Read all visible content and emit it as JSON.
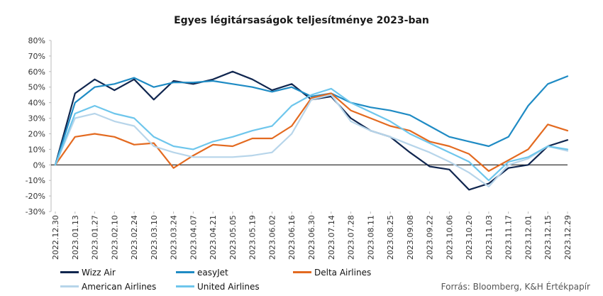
{
  "title": "Egyes légitársaságok teljesítménye 2023-ban",
  "source": "Forrás: Bloomberg, K&H Értékpapír",
  "colors": {
    "wizz": "#10264f",
    "easyjet": "#1f8bc4",
    "delta": "#e36a20",
    "american": "#b7d5ea",
    "united": "#6ec6ec",
    "axis": "#000000",
    "tick": "#333333"
  },
  "chart_data": {
    "type": "line",
    "title": "Egyes légitársaságok teljesítménye 2023-ban",
    "xlabel": "",
    "ylabel": "",
    "ylim": [
      -30,
      80
    ],
    "y_ticks": [
      -30,
      -20,
      -10,
      0,
      10,
      20,
      30,
      40,
      50,
      60,
      70,
      80
    ],
    "y_tick_labels": [
      "-30%",
      "-20%",
      "-10%",
      "0%",
      "10%",
      "20%",
      "30%",
      "40%",
      "50%",
      "60%",
      "70%",
      "80%"
    ],
    "x": [
      "2022.12.30",
      "2023.01.13",
      "2023.01.27",
      "2023.02.10",
      "2023.02.24",
      "2023.03.10",
      "2023.03.24",
      "2023.04.07",
      "2023.04.21",
      "2023.05.05",
      "2023.05.19",
      "2023.06.02",
      "2023.06.16",
      "2023.06.30",
      "2023.07.14",
      "2023.07.28",
      "2023.08.11",
      "2023.08.25",
      "2023.09.08",
      "2023.09.22",
      "2023.10.06",
      "2023.10.20",
      "2023.11.03",
      "2023.11.17",
      "2023.12.01",
      "2023.12.15",
      "2023.12.29"
    ],
    "grid": false,
    "legend_position": "bottom",
    "series": [
      {
        "name": "Wizz Air",
        "color_key": "wizz",
        "values": [
          0,
          46,
          55,
          48,
          55,
          42,
          54,
          52,
          55,
          60,
          55,
          48,
          52,
          42,
          44,
          30,
          22,
          18,
          8,
          -1,
          -3,
          -16,
          -12,
          -2,
          0,
          12,
          16
        ]
      },
      {
        "name": "easyJet",
        "color_key": "easyjet",
        "values": [
          0,
          40,
          50,
          52,
          56,
          50,
          53,
          53,
          54,
          52,
          50,
          47,
          50,
          44,
          46,
          40,
          37,
          35,
          32,
          25,
          18,
          15,
          12,
          18,
          38,
          52,
          57
        ]
      },
      {
        "name": "Delta Airlines",
        "color_key": "delta",
        "values": [
          0,
          18,
          20,
          18,
          13,
          14,
          -2,
          6,
          13,
          12,
          17,
          17,
          25,
          43,
          46,
          35,
          30,
          25,
          22,
          15,
          12,
          7,
          -4,
          3,
          10,
          26,
          22
        ]
      },
      {
        "name": "American Airlines",
        "color_key": "american",
        "values": [
          0,
          30,
          33,
          28,
          25,
          12,
          8,
          5,
          5,
          5,
          6,
          8,
          20,
          42,
          45,
          28,
          22,
          18,
          13,
          8,
          2,
          -5,
          -14,
          0,
          4,
          12,
          9
        ]
      },
      {
        "name": "United Airlines",
        "color_key": "united",
        "values": [
          0,
          33,
          38,
          33,
          30,
          18,
          12,
          10,
          15,
          18,
          22,
          25,
          38,
          45,
          49,
          40,
          34,
          28,
          20,
          14,
          8,
          2,
          -10,
          2,
          5,
          12,
          10
        ]
      }
    ]
  }
}
